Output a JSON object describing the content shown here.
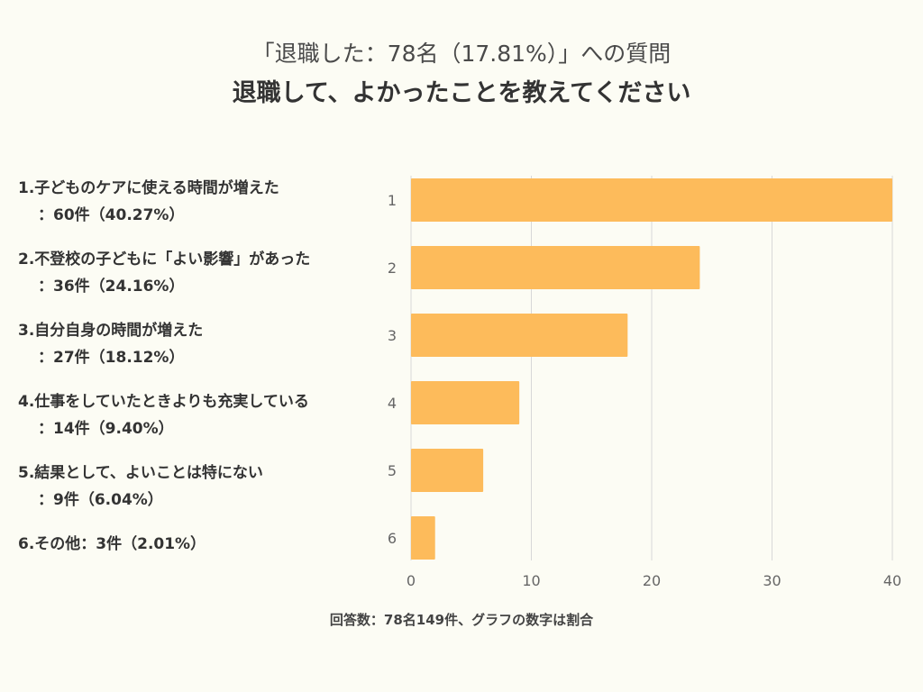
{
  "header": {
    "subtitle": "「退職した：78名（17.81%）」への質問",
    "title": "退職して、よかったことを教えてください"
  },
  "labels": [
    {
      "line1": "1.子どものケアに使える時間が増えた",
      "line2": "：60件（40.27%）"
    },
    {
      "line1": "2.不登校の子どもに「よい影響」があった",
      "line2": "：36件（24.16%）"
    },
    {
      "line1": "3.自分自身の時間が増えた",
      "line2": "：27件（18.12%）"
    },
    {
      "line1": "4.仕事をしていたときよりも充実している",
      "line2": "：14件（9.40%）"
    },
    {
      "line1": "5.結果として、よいことは特にない",
      "line2": "：9件（6.04%）"
    },
    {
      "line1": "6.その他：3件（2.01%）",
      "line2": ""
    }
  ],
  "footer": "回答数：78名149件、グラフの数字は割合",
  "colors": {
    "bar": "#fdbb5b",
    "grid": "#d8d8d8",
    "axis_text": "#666666"
  },
  "chart_data": {
    "type": "bar",
    "orientation": "horizontal",
    "categories": [
      "1",
      "2",
      "3",
      "4",
      "5",
      "6"
    ],
    "values": [
      40,
      24,
      18,
      9,
      6,
      2
    ],
    "xlim": [
      0,
      40
    ],
    "xticks": [
      0,
      10,
      20,
      30,
      40
    ],
    "grid": true,
    "title": "退職して、よかったことを教えてください"
  }
}
